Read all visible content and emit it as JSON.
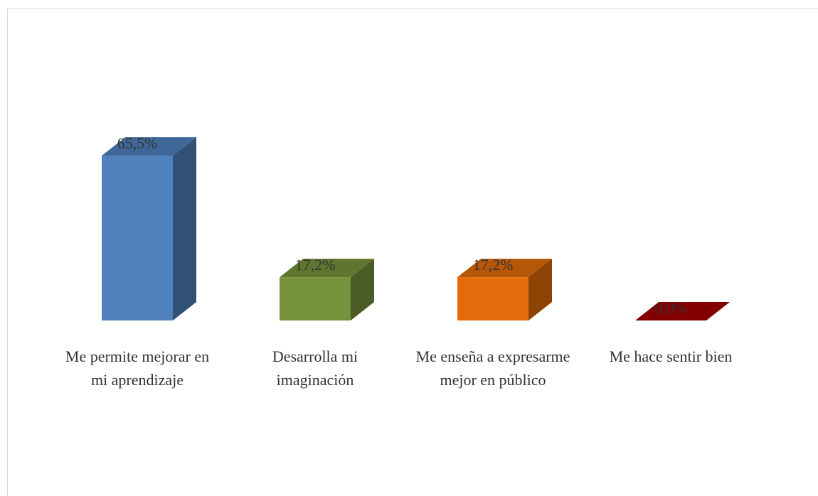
{
  "chart_data": {
    "type": "bar3d",
    "categories": [
      "Me permite mejorar en mi aprendizaje",
      "Desarrolla mi imaginación",
      "Me enseña a expresarme mejor en público",
      "Me hace sentir bien"
    ],
    "values": [
      65.5,
      17.2,
      17.2,
      0.0
    ],
    "value_labels": [
      "65,5%",
      "17,2%",
      "17,2%",
      "0,0%"
    ],
    "colors": [
      "#4f81bd",
      "#77933c",
      "#e46c0a",
      "#a50000"
    ]
  }
}
